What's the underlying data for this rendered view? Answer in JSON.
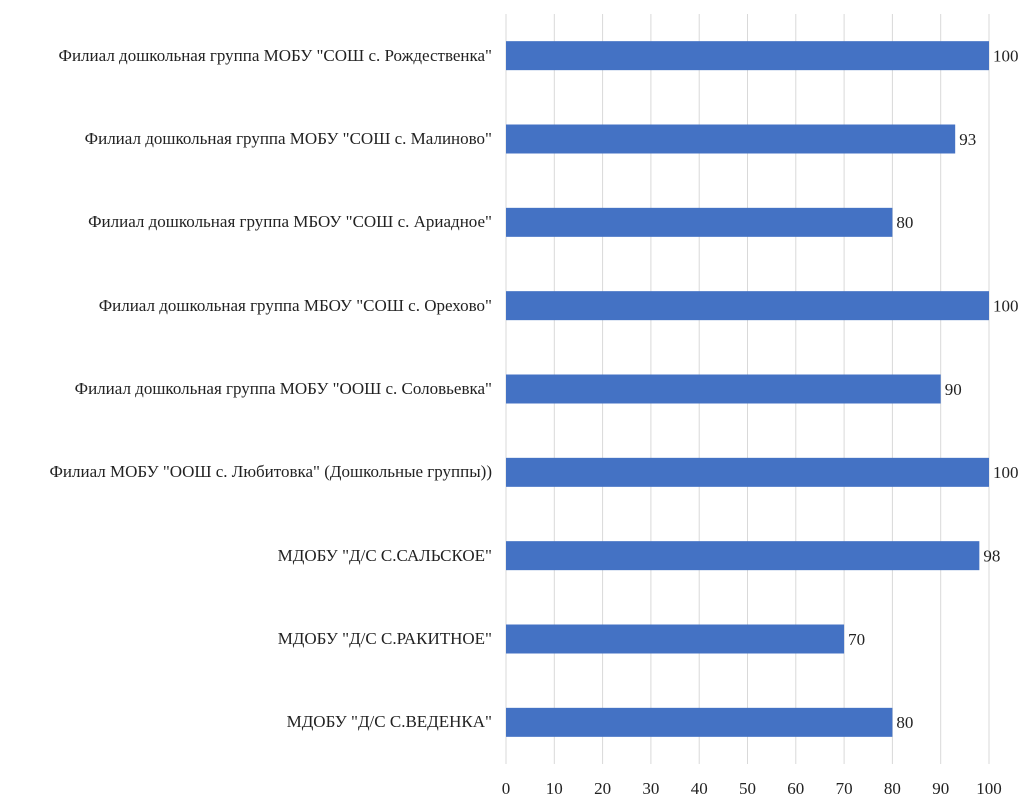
{
  "chart_data": {
    "type": "bar",
    "orientation": "horizontal",
    "categories": [
      "Филиал  дошкольная группа МОБУ \"СОШ с. Рождественка\"",
      "Филиал  дошкольная группа МОБУ \"СОШ с. Малиново\"",
      "Филиал  дошкольная группа МБОУ \"СОШ с. Ариадное\"",
      "Филиал  дошкольная группа МБОУ \"СОШ с. Орехово\"",
      "Филиал  дошкольная группа МОБУ \"ООШ с. Соловьевка\"",
      "Филиал  МОБУ \"ООШ с. Любитовка\" (Дошкольные группы))",
      "МДОБУ \"Д/С С.САЛЬСКОЕ\"",
      "МДОБУ \"Д/С С.РАКИТНОЕ\"",
      "МДОБУ \"Д/С С.ВЕДЕНКА\""
    ],
    "values": [
      100,
      93,
      80,
      100,
      90,
      100,
      98,
      70,
      80
    ],
    "color": "#4472c4",
    "xlim": [
      0,
      100
    ],
    "xticks": [
      0,
      10,
      20,
      30,
      40,
      50,
      60,
      70,
      80,
      90,
      100
    ],
    "grid": true
  }
}
